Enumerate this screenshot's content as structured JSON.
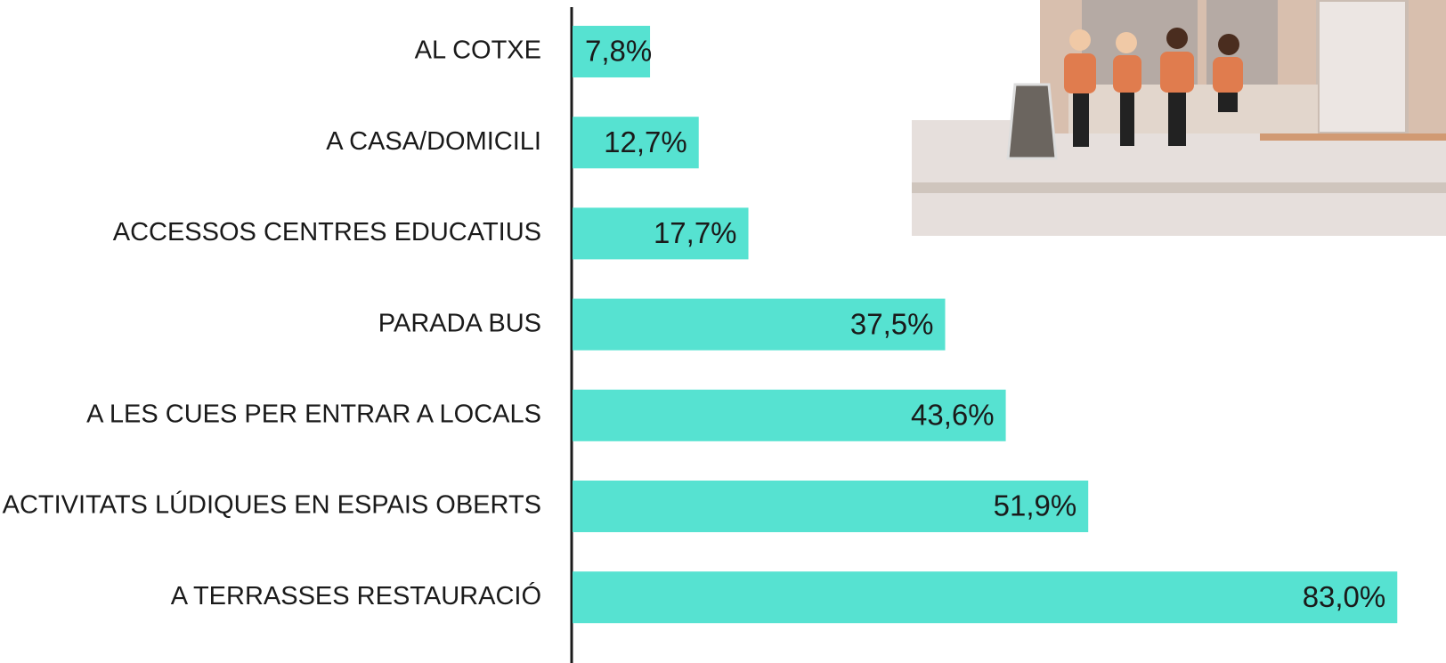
{
  "chart_data": {
    "type": "bar",
    "orientation": "horizontal",
    "categories": [
      "AL COTXE",
      "A CASA/DOMICILI",
      "ACCESSOS CENTRES EDUCATIUS",
      "PARADA BUS",
      "A LES CUES PER ENTRAR A LOCALS",
      "ACTIVITATS LÚDIQUES EN ESPAIS OBERTS",
      "A TERRASSES RESTAURACIÓ"
    ],
    "values": [
      7.8,
      12.7,
      17.7,
      37.5,
      43.6,
      51.9,
      83.0
    ],
    "value_labels": [
      "7,8%",
      "12,7%",
      "17,7%",
      "37,5%",
      "43,6%",
      "51,9%",
      "83,0%"
    ],
    "color": "#56e2d1"
  }
}
